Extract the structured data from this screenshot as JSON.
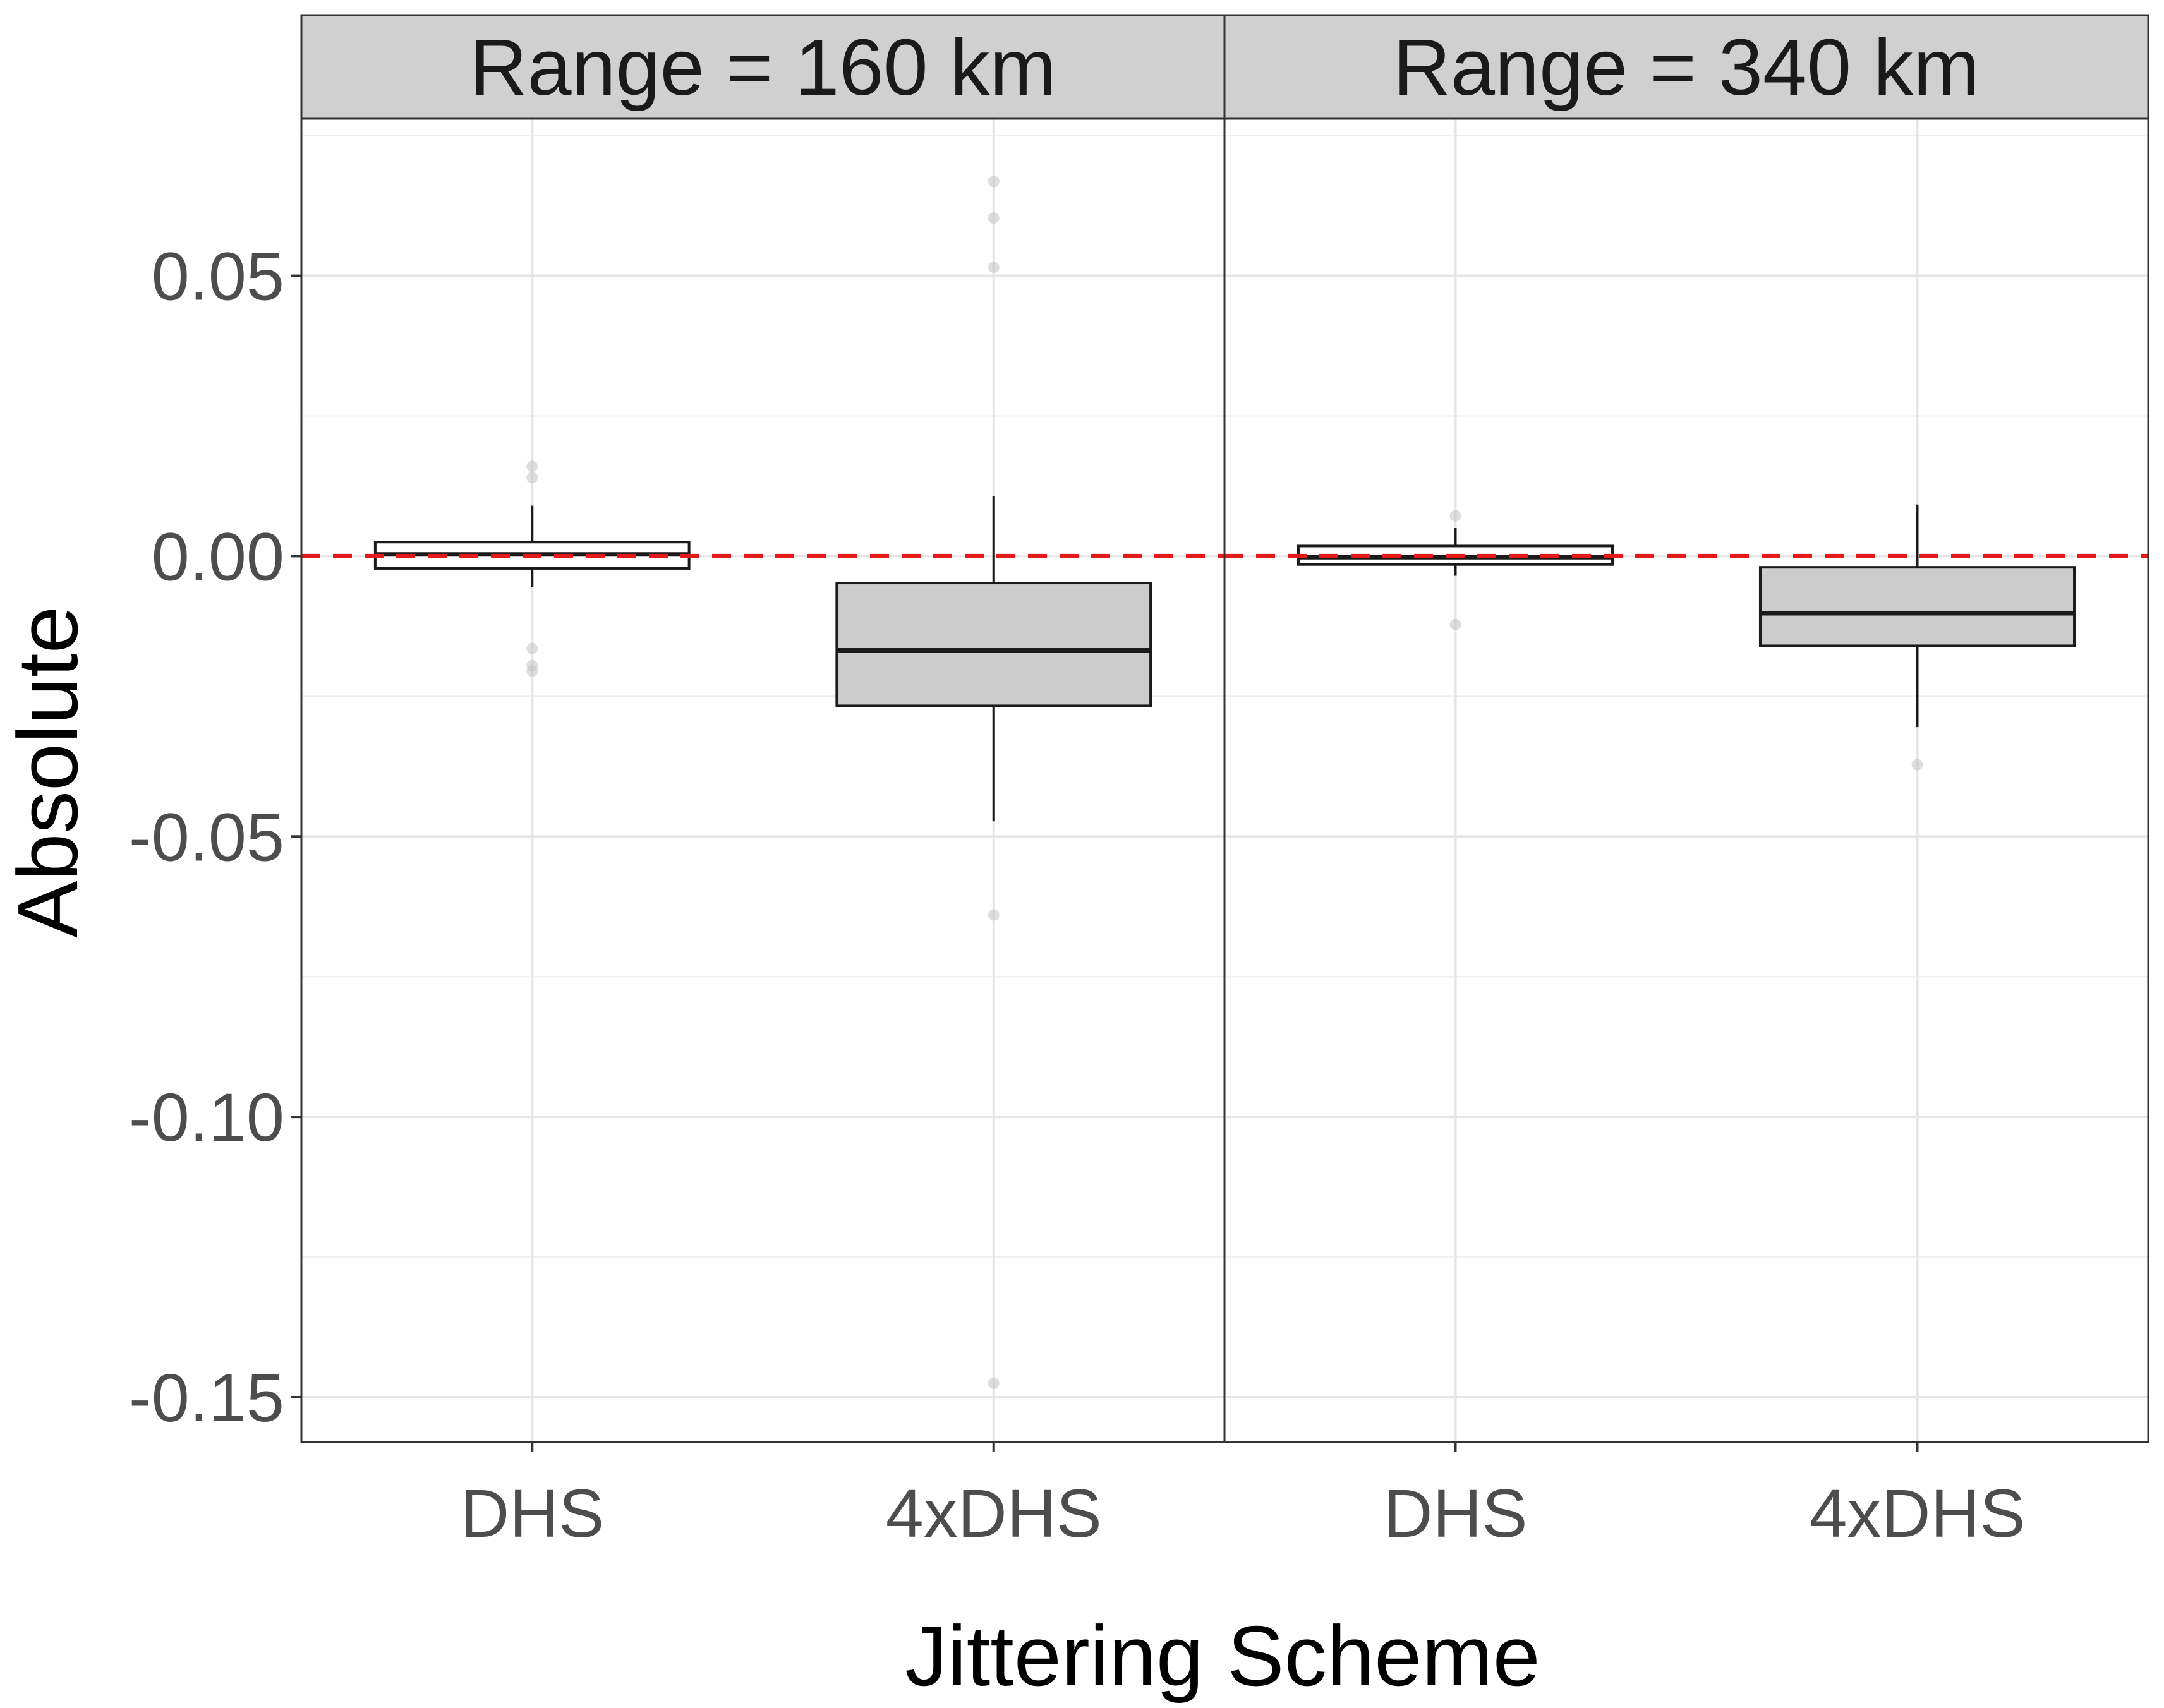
{
  "chart_data": {
    "type": "boxplot",
    "xlabel": "Jittering Scheme",
    "ylabel": "Absolute",
    "ylim": [
      -0.158,
      0.078
    ],
    "yticks": [
      0.05,
      0.0,
      -0.05,
      -0.1,
      -0.15
    ],
    "ytick_labels": [
      "0.05",
      "0.00",
      "-0.05",
      "-0.10",
      "-0.15"
    ],
    "categories": [
      "DHS",
      "4xDHS"
    ],
    "reference_line": {
      "y": 0,
      "style": "dashed",
      "color": "#e31a1c"
    },
    "grid": true,
    "colors": {
      "dhs_fill": "#ffffff",
      "x4dhs_fill": "#cccccc",
      "strip_fill": "#d0d0d0",
      "outlier": "#bdbdbd"
    },
    "panels": [
      {
        "strip_label": "Range = 160 km",
        "boxes": [
          {
            "category": "DHS",
            "lower_whisker": -0.0055,
            "q1": -0.0022,
            "median": 0.0003,
            "q3": 0.0025,
            "upper_whisker": 0.009,
            "outliers": [
              0.016,
              0.014,
              -0.0165,
              -0.0195,
              -0.0205
            ]
          },
          {
            "category": "4xDHS",
            "lower_whisker": -0.0473,
            "q1": -0.0267,
            "median": -0.0168,
            "q3": -0.0048,
            "upper_whisker": 0.0107,
            "outliers": [
              0.0668,
              0.0603,
              0.0515,
              -0.064,
              -0.1475
            ]
          }
        ]
      },
      {
        "strip_label": "Range = 340 km",
        "boxes": [
          {
            "category": "DHS",
            "lower_whisker": -0.0035,
            "q1": -0.0015,
            "median": -0.0002,
            "q3": 0.0018,
            "upper_whisker": 0.005,
            "outliers": [
              0.0072,
              -0.0122
            ]
          },
          {
            "category": "4xDHS",
            "lower_whisker": -0.0305,
            "q1": -0.016,
            "median": -0.0102,
            "q3": -0.002,
            "upper_whisker": 0.0092,
            "outliers": [
              -0.0372
            ]
          }
        ]
      }
    ]
  }
}
